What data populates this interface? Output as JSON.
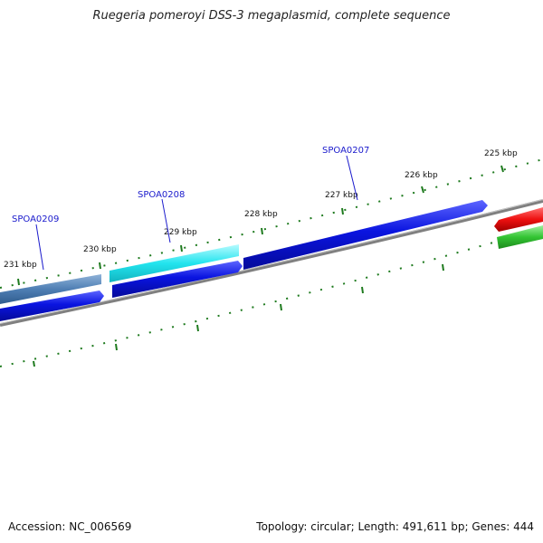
{
  "title": "Ruegeria pomeroyi DSS-3 megaplasmid, complete sequence",
  "footer": {
    "accession": "Accession: NC_006569",
    "summary": "Topology: circular; Length: 491,611 bp; Genes: 444"
  },
  "scale_labels": [
    "231 kbp",
    "230 kbp",
    "229 kbp",
    "228 kbp",
    "227 kbp",
    "226 kbp",
    "225 kbp"
  ],
  "gene_labels": [
    "SPOA0209",
    "SPOA0208",
    "SPOA0207"
  ],
  "colors": {
    "backbone": "#808080",
    "tick": "#1e7a1e",
    "gene_blue": "#0a14e0",
    "gene_steel": "#4f7fb4",
    "gene_cyan": "#22e4ee",
    "gene_red": "#ee1010",
    "gene_green": "#33c433",
    "label_blue": "#1a1acc"
  }
}
